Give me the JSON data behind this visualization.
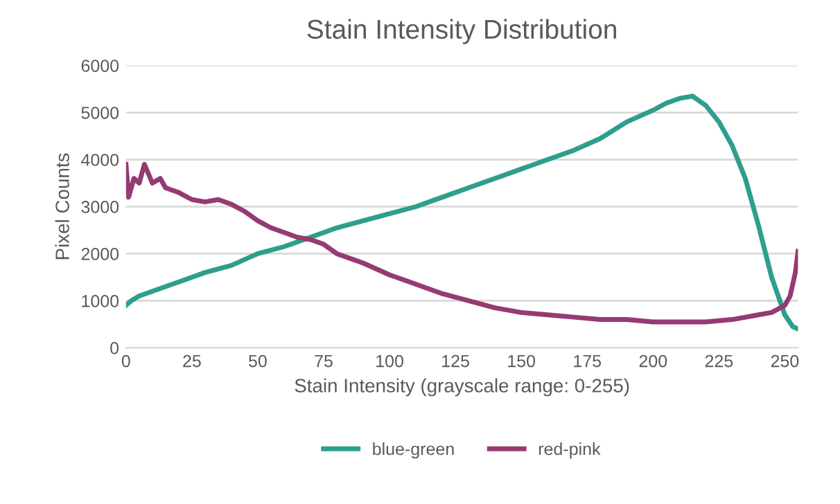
{
  "chart_data": {
    "type": "line",
    "title": "Stain Intensity Distribution",
    "xlabel": "Stain Intensity (grayscale range: 0-255)",
    "ylabel": "Pixel Counts",
    "xlim": [
      0,
      255
    ],
    "xticks": [
      0,
      25,
      50,
      75,
      100,
      125,
      150,
      175,
      200,
      225,
      250
    ],
    "ylim": [
      0,
      6000
    ],
    "yticks": [
      0,
      1000,
      2000,
      3000,
      4000,
      5000,
      6000
    ],
    "grid": "y",
    "legend": "bottom",
    "marker": "none",
    "line_style": "solid",
    "series": [
      {
        "name": "blue-green",
        "color": "#2e9e8e",
        "x": [
          0,
          2,
          5,
          10,
          15,
          20,
          25,
          30,
          40,
          50,
          60,
          70,
          80,
          90,
          100,
          110,
          120,
          130,
          140,
          150,
          160,
          170,
          180,
          190,
          200,
          205,
          210,
          215,
          220,
          225,
          230,
          235,
          240,
          245,
          250,
          253,
          255
        ],
        "values": [
          900,
          1000,
          1100,
          1200,
          1300,
          1400,
          1500,
          1600,
          1750,
          2000,
          2150,
          2350,
          2550,
          2700,
          2850,
          3000,
          3200,
          3400,
          3600,
          3800,
          4000,
          4200,
          4450,
          4800,
          5050,
          5200,
          5300,
          5350,
          5150,
          4800,
          4300,
          3600,
          2600,
          1500,
          700,
          450,
          400
        ]
      },
      {
        "name": "red-pink",
        "color": "#953b72",
        "x": [
          0,
          1,
          3,
          5,
          7,
          10,
          13,
          15,
          20,
          25,
          30,
          35,
          40,
          45,
          50,
          55,
          60,
          65,
          70,
          75,
          80,
          90,
          100,
          110,
          120,
          130,
          140,
          150,
          160,
          170,
          180,
          190,
          200,
          210,
          220,
          230,
          240,
          245,
          250,
          252,
          254,
          255
        ],
        "values": [
          3900,
          3200,
          3600,
          3500,
          3900,
          3500,
          3600,
          3400,
          3300,
          3150,
          3100,
          3150,
          3050,
          2900,
          2700,
          2550,
          2450,
          2350,
          2300,
          2200,
          2000,
          1800,
          1550,
          1350,
          1150,
          1000,
          850,
          750,
          700,
          650,
          600,
          600,
          550,
          550,
          550,
          600,
          700,
          750,
          900,
          1100,
          1600,
          2050
        ]
      }
    ]
  }
}
